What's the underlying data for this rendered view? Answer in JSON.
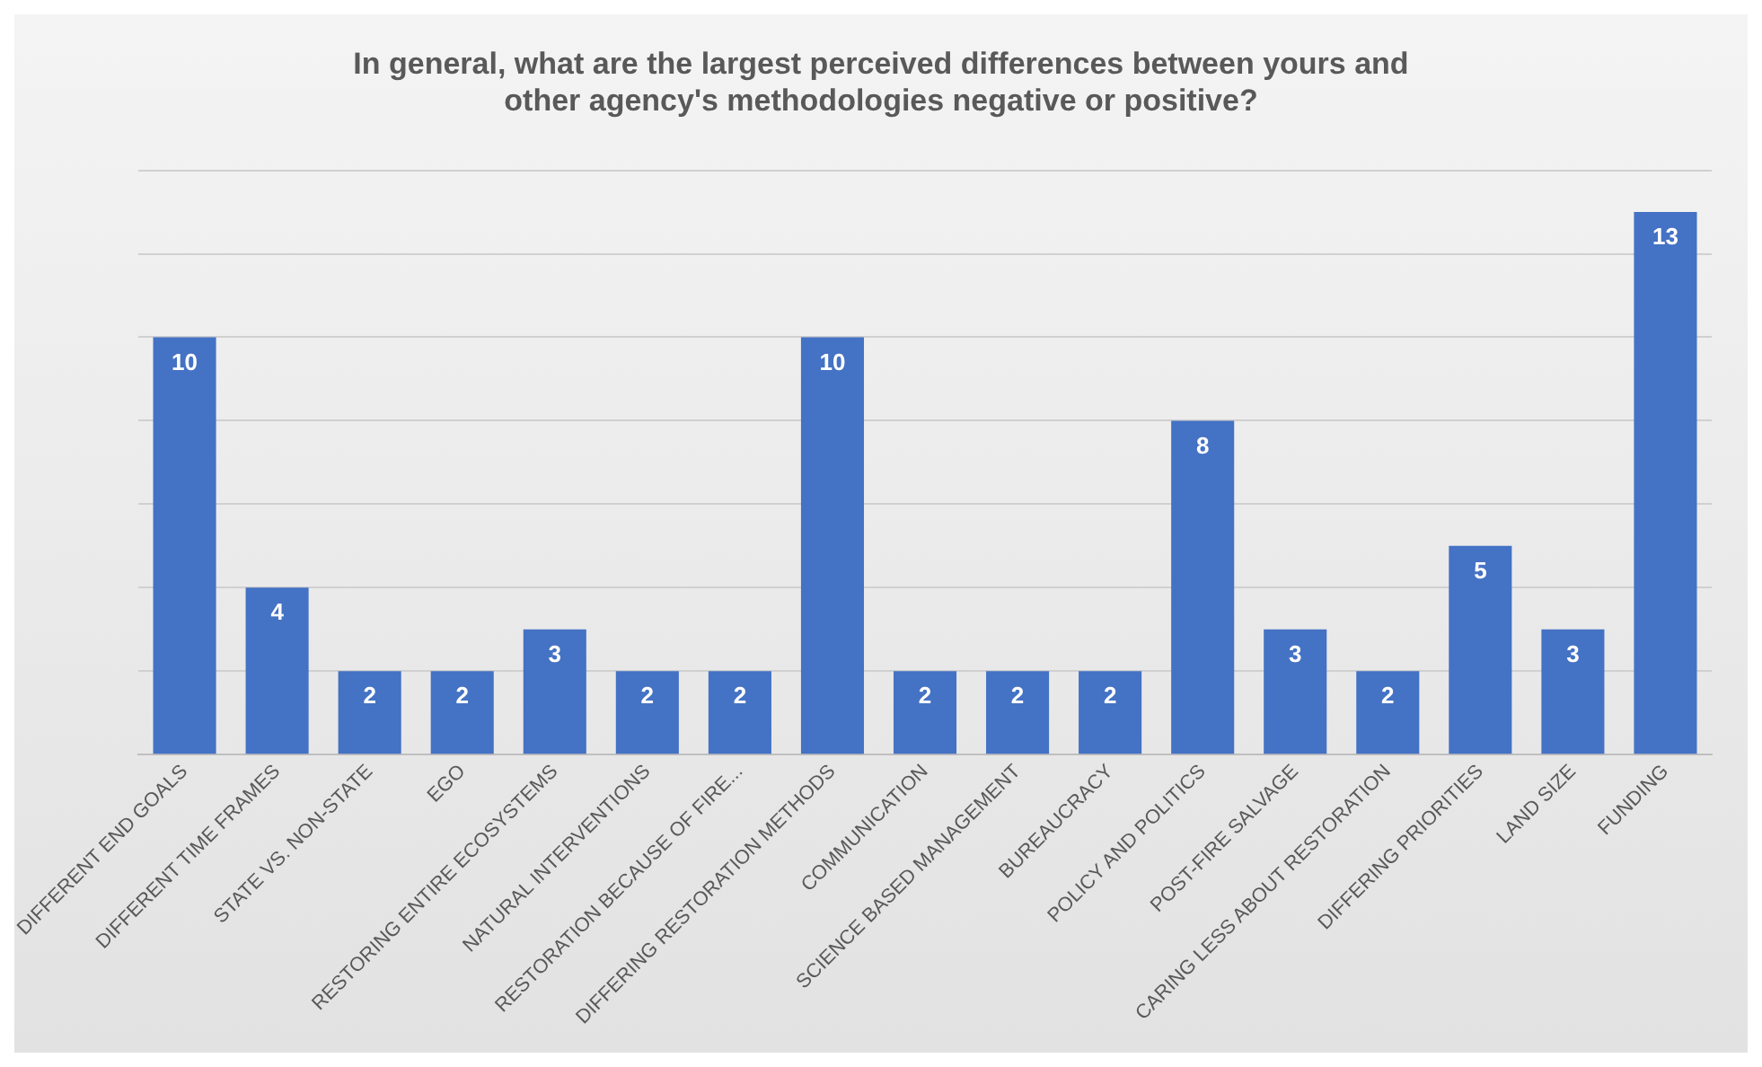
{
  "chart_data": {
    "type": "bar",
    "title": "In general, what are the largest perceived differences between yours and other agency's methodologies negative or positive?",
    "categories": [
      "DIFFERENT END GOALS",
      "DIFFERENT TIME FRAMES",
      "STATE VS. NON-STATE",
      "EGO",
      "RESTORING ENTIRE ECOSYSTEMS",
      "NATURAL INTERVENTIONS",
      "RESTORATION BECAUSE OF FIRE...",
      "DIFFERING RESTORATION METHODS",
      "COMMUNICATION",
      "SCIENCE BASED MANAGEMENT",
      "BUREAUCRACY",
      "POLICY AND POLITICS",
      "POST-FIRE SALVAGE",
      "CARING LESS ABOUT RESTORATION",
      "DIFFERING PRIORITIES",
      "LAND SIZE",
      "FUNDING"
    ],
    "values": [
      10,
      4,
      2,
      2,
      3,
      2,
      2,
      10,
      2,
      2,
      2,
      8,
      3,
      2,
      5,
      3,
      13
    ],
    "color": "#4472c4",
    "data_labels": true,
    "ylim": [
      0,
      14
    ],
    "yticks": [
      {
        "value": 0,
        "label": null
      },
      {
        "value": 2,
        "label": null
      },
      {
        "value": 4,
        "label": null
      },
      {
        "value": 6,
        "label": null
      },
      {
        "value": 8,
        "label": null
      },
      {
        "value": 10,
        "label": null
      },
      {
        "value": 12,
        "label": null
      },
      {
        "value": 14,
        "label": null
      }
    ],
    "grid": "y",
    "tick_labels": "x",
    "legend": false
  }
}
